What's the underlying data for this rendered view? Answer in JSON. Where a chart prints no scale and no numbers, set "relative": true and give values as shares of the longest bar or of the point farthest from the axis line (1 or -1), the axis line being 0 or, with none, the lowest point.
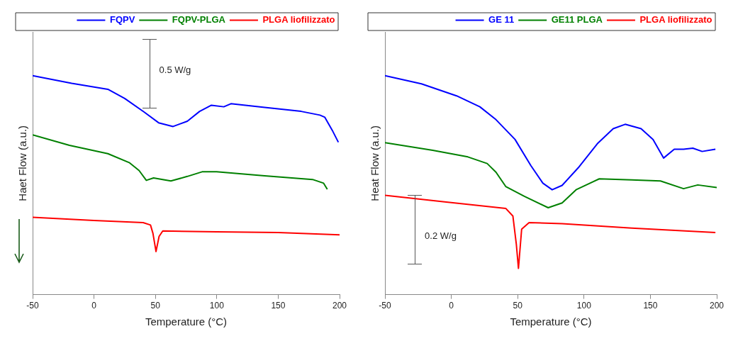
{
  "chart_data": [
    {
      "type": "line",
      "xlabel": "Temperature (°C)",
      "ylabel": "Haet Flow (a.u.)",
      "xlim": [
        -50,
        200
      ],
      "xticks": [
        -50,
        0,
        50,
        100,
        150,
        200
      ],
      "relative": true,
      "legend": "top right",
      "marker": "none",
      "annotations": [
        "0.5 W/g"
      ],
      "series": [
        {
          "name": "FQPV",
          "color": "#0000ff",
          "x": [
            -50,
            -18.2,
            11.3,
            25,
            40.8,
            52.6,
            64.4,
            76,
            86,
            95.6,
            105.7,
            111.5,
            139,
            168.7,
            184,
            188,
            194,
            199
          ],
          "values": [
            1.0,
            0.965,
            0.938,
            0.896,
            0.834,
            0.785,
            0.768,
            0.792,
            0.837,
            0.865,
            0.858,
            0.872,
            0.855,
            0.837,
            0.82,
            0.81,
            0.751,
            0.696
          ]
        },
        {
          "name": "FQPV-PLGA",
          "color": "#008000",
          "x": [
            -50,
            -20,
            11.3,
            29,
            36.7,
            42.6,
            48.5,
            62.6,
            76,
            88,
            99.8,
            139,
            178,
            187,
            190
          ],
          "values": [
            0.73,
            0.682,
            0.644,
            0.602,
            0.567,
            0.522,
            0.533,
            0.519,
            0.54,
            0.561,
            0.561,
            0.543,
            0.526,
            0.509,
            0.481
          ]
        },
        {
          "name": "PLGA liofilizzato",
          "color": "#ff0000",
          "x": [
            -50,
            0,
            40,
            46,
            48,
            50.5,
            53,
            56,
            100,
            150,
            200
          ],
          "values": [
            0.353,
            0.339,
            0.329,
            0.318,
            0.28,
            0.197,
            0.266,
            0.291,
            0.287,
            0.284,
            0.273
          ]
        }
      ]
    },
    {
      "type": "line",
      "xlabel": "Temperature (°C)",
      "ylabel": "Heat Flow (a.u.)",
      "xlim": [
        -50,
        200
      ],
      "xticks": [
        -50,
        0,
        50,
        100,
        150,
        200
      ],
      "relative": true,
      "legend": "top right",
      "marker": "none",
      "annotations": [
        "0.2 W/g"
      ],
      "series": [
        {
          "name": "GE 11",
          "color": "#0000ff",
          "x": [
            -50,
            -22.5,
            4,
            21.5,
            33.7,
            48,
            60,
            69,
            76,
            83.5,
            95.6,
            110,
            122,
            131,
            143,
            152,
            160,
            168,
            175,
            182,
            189,
            199
          ],
          "values": [
            1.0,
            0.963,
            0.908,
            0.858,
            0.799,
            0.709,
            0.589,
            0.509,
            0.479,
            0.499,
            0.579,
            0.689,
            0.758,
            0.778,
            0.758,
            0.709,
            0.624,
            0.664,
            0.664,
            0.669,
            0.654,
            0.664
          ]
        },
        {
          "name": "GE11 PLGA",
          "color": "#008000",
          "x": [
            -50,
            -14,
            12.5,
            27,
            33.7,
            41,
            55,
            73,
            83.5,
            94,
            111.5,
            136,
            157.6,
            175,
            185.7,
            200
          ],
          "values": [
            0.694,
            0.659,
            0.629,
            0.599,
            0.559,
            0.494,
            0.449,
            0.397,
            0.419,
            0.479,
            0.529,
            0.524,
            0.519,
            0.484,
            0.501,
            0.489
          ]
        },
        {
          "name": "PLGA liofilizzato",
          "color": "#ff0000",
          "x": [
            -50,
            -5,
            41,
            46.4,
            49,
            50.6,
            53,
            58.6,
            83.5,
            136,
            199
          ],
          "values": [
            0.454,
            0.424,
            0.394,
            0.359,
            0.23,
            0.12,
            0.299,
            0.329,
            0.324,
            0.304,
            0.284
          ]
        }
      ]
    }
  ]
}
